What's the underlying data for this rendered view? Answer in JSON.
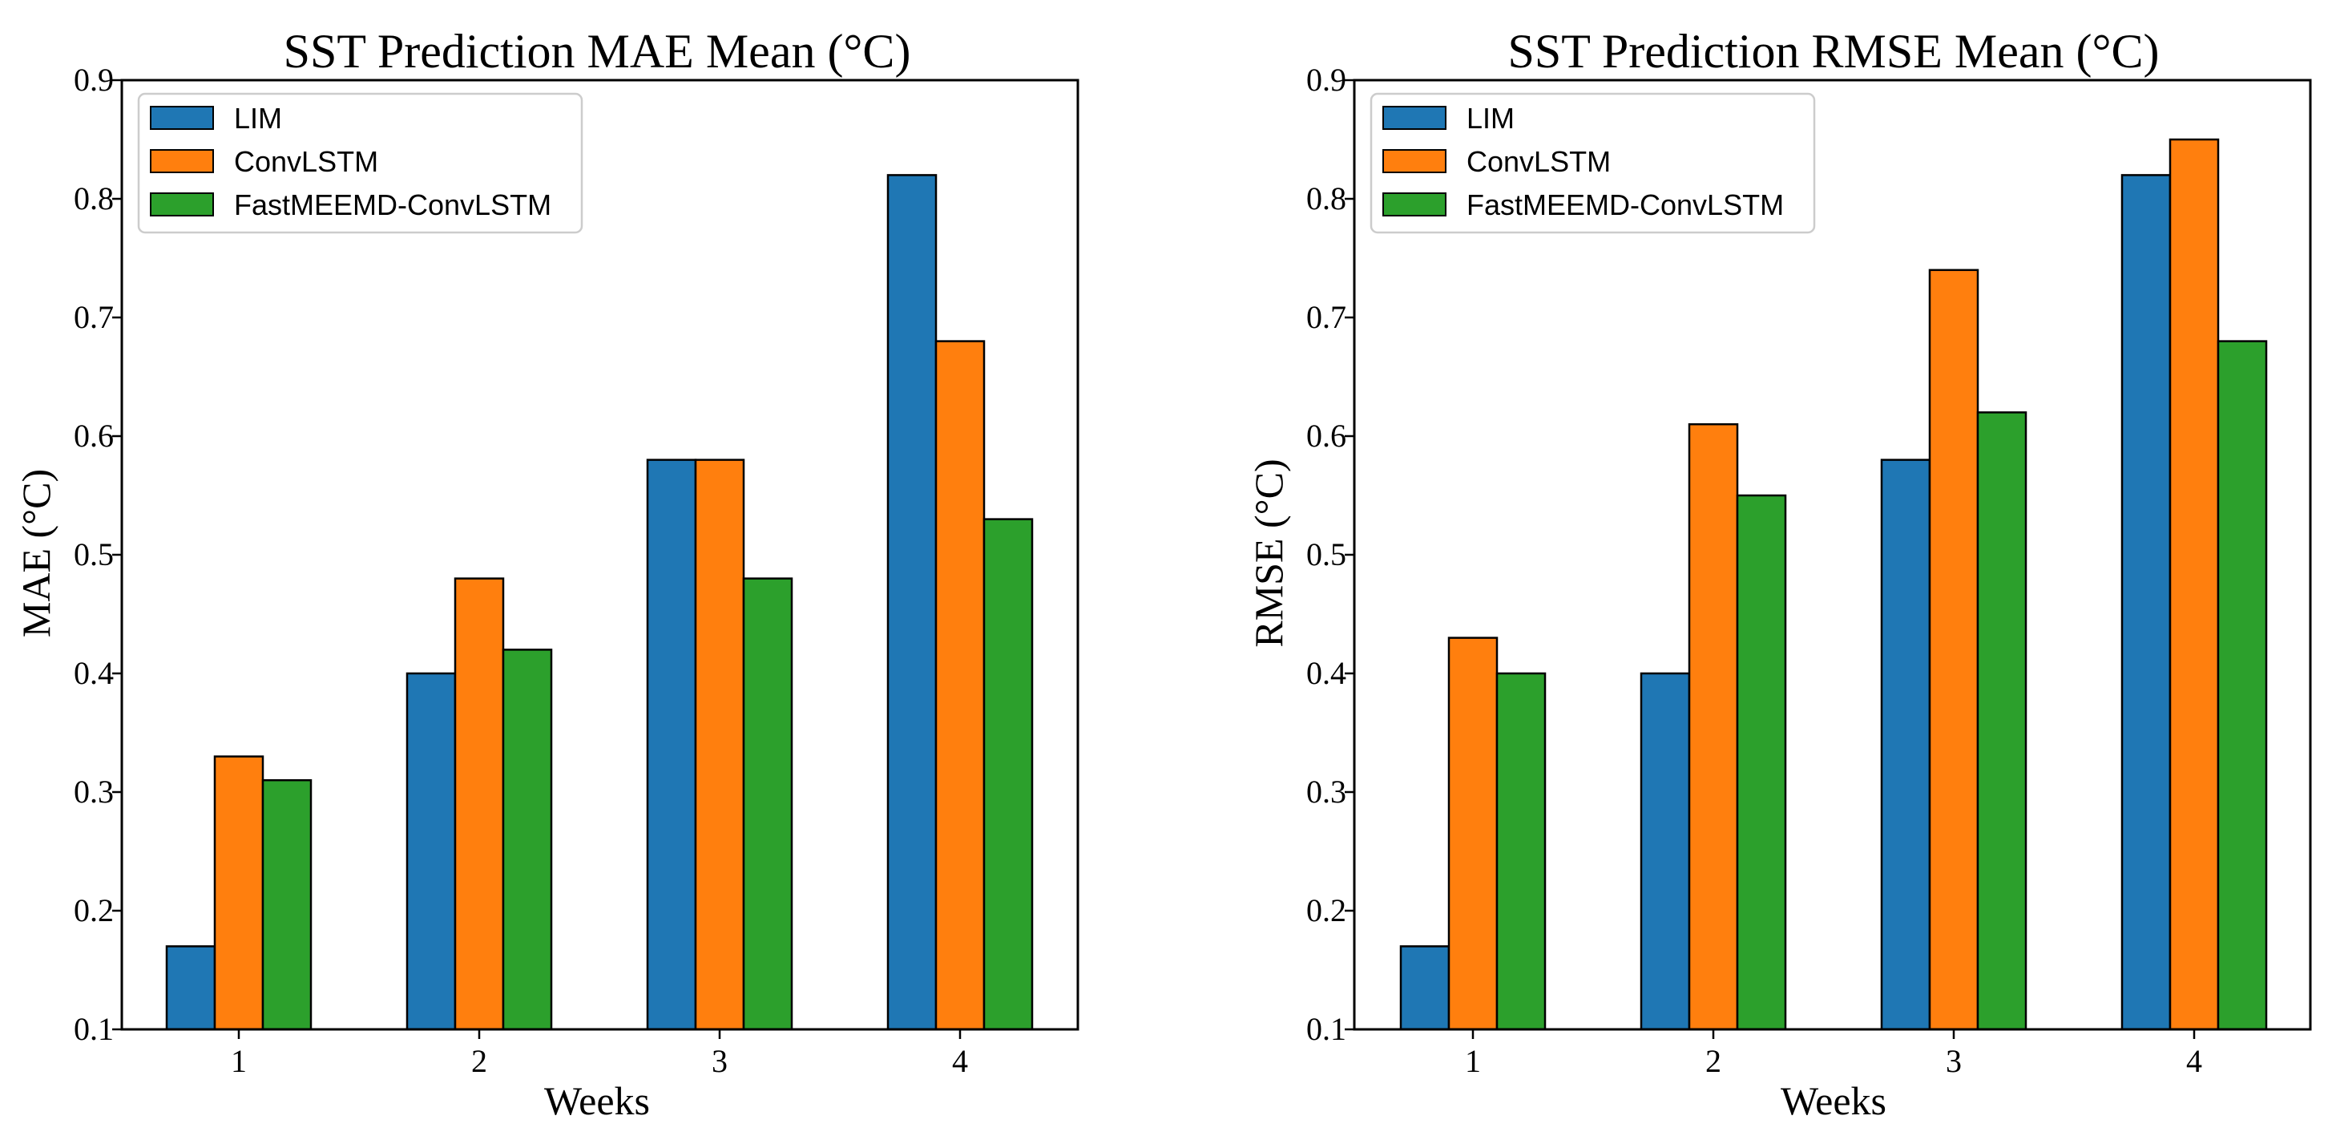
{
  "chart_data": [
    {
      "type": "bar",
      "title": "SST Prediction MAE Mean (°C)",
      "xlabel": "Weeks",
      "ylabel": "MAE (°C)",
      "categories": [
        "1",
        "2",
        "3",
        "4"
      ],
      "ylim": [
        0.1,
        0.9
      ],
      "yticks": [
        "0.1",
        "0.2",
        "0.3",
        "0.4",
        "0.5",
        "0.6",
        "0.7",
        "0.8",
        "0.9"
      ],
      "grid": false,
      "legend_position": "top-left",
      "series": [
        {
          "name": "LIM",
          "color": "#1f77b4",
          "values": [
            0.17,
            0.4,
            0.58,
            0.82
          ]
        },
        {
          "name": "ConvLSTM",
          "color": "#ff7f0e",
          "values": [
            0.33,
            0.48,
            0.58,
            0.68
          ]
        },
        {
          "name": "FastMEEMD-ConvLSTM",
          "color": "#2ca02c",
          "values": [
            0.31,
            0.42,
            0.48,
            0.53
          ]
        }
      ]
    },
    {
      "type": "bar",
      "title": "SST Prediction RMSE Mean (°C)",
      "xlabel": "Weeks",
      "ylabel": "RMSE (°C)",
      "categories": [
        "1",
        "2",
        "3",
        "4"
      ],
      "ylim": [
        0.1,
        0.9
      ],
      "yticks": [
        "0.1",
        "0.2",
        "0.3",
        "0.4",
        "0.5",
        "0.6",
        "0.7",
        "0.8",
        "0.9"
      ],
      "grid": false,
      "legend_position": "top-left",
      "series": [
        {
          "name": "LIM",
          "color": "#1f77b4",
          "values": [
            0.17,
            0.4,
            0.58,
            0.82
          ]
        },
        {
          "name": "ConvLSTM",
          "color": "#ff7f0e",
          "values": [
            0.43,
            0.61,
            0.74,
            0.85
          ]
        },
        {
          "name": "FastMEEMD-ConvLSTM",
          "color": "#2ca02c",
          "values": [
            0.4,
            0.55,
            0.62,
            0.68
          ]
        }
      ]
    }
  ]
}
